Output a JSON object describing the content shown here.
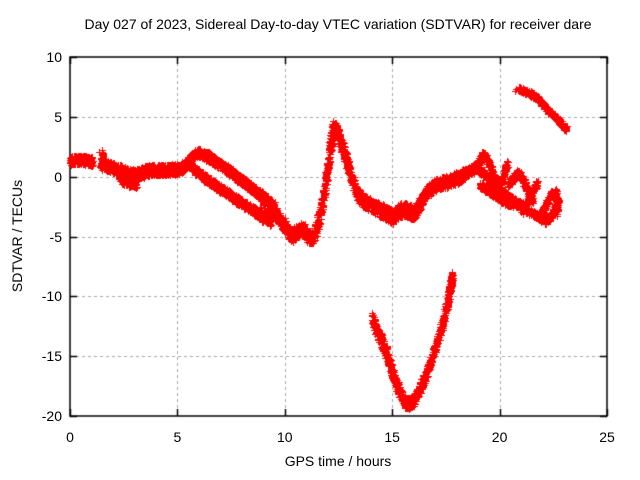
{
  "title": "Day 027 of 2023, Sidereal Day-to-day VTEC variation (SDTVAR) for receiver dare",
  "chart_data": {
    "type": "scatter",
    "marker": "plus",
    "color": "#ff0000",
    "grid_color": "#a8a8a8",
    "grid": true,
    "legend": "none",
    "xlabel": "GPS time / hours",
    "ylabel": "SDTVAR / TECUs",
    "xlim": [
      0,
      25
    ],
    "ylim": [
      -20,
      10
    ],
    "xticks": [
      0,
      5,
      10,
      15,
      20,
      25
    ],
    "yticks": [
      -20,
      -15,
      -10,
      -5,
      0,
      5,
      10
    ],
    "segments": [
      {
        "name": "start-cluster",
        "spread": 0.38,
        "n": 210,
        "pts": [
          [
            0,
            1.35
          ],
          [
            0.55,
            1.4
          ],
          [
            1.05,
            1.25
          ]
        ]
      },
      {
        "name": "spike-1.5",
        "spread": 0.12,
        "n": 45,
        "pts": [
          [
            1.5,
            0.7
          ],
          [
            1.52,
            2.2
          ]
        ]
      },
      {
        "name": "band-early",
        "spread": 0.45,
        "n": 850,
        "pts": [
          [
            1.42,
            1.1
          ],
          [
            2.0,
            0.75
          ],
          [
            2.5,
            0.45
          ],
          [
            3.0,
            0.12
          ],
          [
            3.3,
            0.3
          ],
          [
            3.6,
            0.5
          ],
          [
            4.0,
            0.55
          ],
          [
            4.5,
            0.55
          ],
          [
            5.0,
            0.65
          ],
          [
            5.3,
            0.8
          ]
        ]
      },
      {
        "name": "band-early-lower",
        "spread": 0.4,
        "n": 130,
        "pts": [
          [
            2.3,
            -0.1
          ],
          [
            2.7,
            -0.45
          ],
          [
            3.1,
            -0.55
          ]
        ]
      },
      {
        "name": "bump-6",
        "spread": 0.3,
        "n": 210,
        "pts": [
          [
            5.3,
            0.9
          ],
          [
            5.55,
            1.4
          ],
          [
            5.8,
            1.9
          ],
          [
            6.0,
            2.0
          ],
          [
            6.25,
            1.8
          ]
        ]
      },
      {
        "name": "decline-upper",
        "spread": 0.38,
        "n": 640,
        "pts": [
          [
            6.25,
            1.85
          ],
          [
            6.7,
            1.35
          ],
          [
            7.2,
            0.75
          ],
          [
            7.7,
            0.1
          ],
          [
            8.2,
            -0.6
          ],
          [
            8.7,
            -1.3
          ],
          [
            9.2,
            -2.0
          ],
          [
            9.5,
            -2.5
          ]
        ]
      },
      {
        "name": "decline-lower",
        "spread": 0.35,
        "n": 720,
        "pts": [
          [
            5.6,
            0.85
          ],
          [
            6.0,
            0.3
          ],
          [
            6.5,
            -0.4
          ],
          [
            7.0,
            -1.0
          ],
          [
            7.5,
            -1.6
          ],
          [
            8.0,
            -2.2
          ],
          [
            8.5,
            -2.8
          ],
          [
            9.0,
            -3.3
          ],
          [
            9.3,
            -3.6
          ]
        ]
      },
      {
        "name": "spiky-cluster-9",
        "spread": 1.2,
        "n": 60,
        "pts": [
          [
            8.8,
            -2.4
          ],
          [
            9.1,
            -2.8
          ],
          [
            9.4,
            -3.2
          ]
        ]
      },
      {
        "name": "valley-10",
        "spread": 0.55,
        "n": 420,
        "pts": [
          [
            9.5,
            -2.9
          ],
          [
            9.8,
            -3.6
          ],
          [
            10.1,
            -4.4
          ],
          [
            10.35,
            -5.0
          ],
          [
            10.6,
            -4.5
          ],
          [
            10.85,
            -4.4
          ],
          [
            11.1,
            -5.0
          ],
          [
            11.3,
            -5.1
          ]
        ]
      },
      {
        "name": "rise-12",
        "spread": 0.7,
        "n": 280,
        "pts": [
          [
            11.35,
            -4.9
          ],
          [
            11.55,
            -3.8
          ],
          [
            11.75,
            -2.2
          ],
          [
            11.9,
            -0.6
          ],
          [
            12.0,
            0.8
          ],
          [
            12.1,
            2.4
          ],
          [
            12.2,
            3.6
          ],
          [
            12.28,
            4.15
          ]
        ]
      },
      {
        "name": "peak-decline-13",
        "spread": 0.55,
        "n": 470,
        "pts": [
          [
            12.3,
            4.15
          ],
          [
            12.45,
            3.7
          ],
          [
            12.6,
            2.9
          ],
          [
            12.8,
            1.8
          ],
          [
            13.0,
            0.6
          ],
          [
            13.2,
            -0.7
          ],
          [
            13.45,
            -1.6
          ],
          [
            13.7,
            -2.1
          ],
          [
            14.0,
            -2.4
          ],
          [
            14.35,
            -2.7
          ]
        ]
      },
      {
        "name": "valley-15",
        "spread": 0.6,
        "n": 400,
        "pts": [
          [
            14.35,
            -2.7
          ],
          [
            14.6,
            -2.9
          ],
          [
            14.85,
            -3.2
          ],
          [
            15.05,
            -3.4
          ],
          [
            15.3,
            -2.9
          ],
          [
            15.6,
            -2.7
          ],
          [
            15.9,
            -3.0
          ],
          [
            16.15,
            -2.8
          ]
        ]
      },
      {
        "name": "rise-17",
        "spread": 0.5,
        "n": 470,
        "pts": [
          [
            16.15,
            -2.7
          ],
          [
            16.4,
            -1.9
          ],
          [
            16.7,
            -1.1
          ],
          [
            17.0,
            -0.7
          ],
          [
            17.4,
            -0.5
          ],
          [
            17.8,
            -0.3
          ],
          [
            18.1,
            -0.05
          ],
          [
            18.35,
            0.25
          ]
        ]
      },
      {
        "name": "plateau-tip-19",
        "spread": 0.35,
        "n": 220,
        "pts": [
          [
            18.35,
            0.3
          ],
          [
            18.6,
            0.5
          ],
          [
            18.9,
            0.8
          ],
          [
            19.1,
            1.3
          ],
          [
            19.25,
            1.85
          ]
        ]
      },
      {
        "name": "steep-descent-20",
        "spread": 0.3,
        "n": 180,
        "pts": [
          [
            19.3,
            1.9
          ],
          [
            19.55,
            0.9
          ],
          [
            19.8,
            -0.3
          ],
          [
            20.0,
            -1.2
          ],
          [
            20.15,
            -1.6
          ]
        ]
      },
      {
        "name": "long-descent-21",
        "spread": 0.3,
        "n": 370,
        "pts": [
          [
            18.8,
            0.9
          ],
          [
            19.3,
            0.2
          ],
          [
            19.8,
            -0.7
          ],
          [
            20.3,
            -1.6
          ],
          [
            20.8,
            -2.2
          ],
          [
            21.1,
            -2.5
          ]
        ]
      },
      {
        "name": "lower-strand-20",
        "spread": 0.3,
        "n": 240,
        "pts": [
          [
            19.1,
            -0.7
          ],
          [
            19.6,
            -1.3
          ],
          [
            20.1,
            -1.9
          ],
          [
            20.6,
            -2.3
          ]
        ]
      },
      {
        "name": "spur-up-20.3",
        "spread": 0.25,
        "n": 110,
        "pts": [
          [
            19.85,
            -1.2
          ],
          [
            20.05,
            -0.4
          ],
          [
            20.25,
            0.5
          ],
          [
            20.35,
            1.1
          ]
        ]
      },
      {
        "name": "spur-bump-21",
        "spread": 0.3,
        "n": 210,
        "pts": [
          [
            20.4,
            -0.6
          ],
          [
            20.65,
            -0.1
          ],
          [
            20.9,
            0.3
          ],
          [
            21.1,
            -0.3
          ],
          [
            21.3,
            -1.1
          ],
          [
            21.55,
            -2.0
          ]
        ]
      },
      {
        "name": "bottom-strand-22",
        "spread": 0.3,
        "n": 320,
        "pts": [
          [
            21.0,
            -2.6
          ],
          [
            21.5,
            -3.0
          ],
          [
            21.9,
            -3.4
          ],
          [
            22.15,
            -3.7
          ],
          [
            22.4,
            -3.3
          ],
          [
            22.6,
            -2.6
          ],
          [
            22.75,
            -1.9
          ]
        ]
      },
      {
        "name": "spur-up-21.5",
        "spread": 0.25,
        "n": 130,
        "pts": [
          [
            21.05,
            -2.9
          ],
          [
            21.35,
            -1.9
          ],
          [
            21.6,
            -1.0
          ],
          [
            21.75,
            -0.55
          ]
        ]
      },
      {
        "name": "spur-up-22.2",
        "spread": 0.25,
        "n": 90,
        "pts": [
          [
            21.95,
            -3.1
          ],
          [
            22.2,
            -2.2
          ],
          [
            22.4,
            -1.4
          ]
        ]
      },
      {
        "name": "edge-cluster-22.7",
        "spread": 0.3,
        "n": 70,
        "pts": [
          [
            22.6,
            -1.2
          ],
          [
            22.65,
            -2.0
          ],
          [
            22.7,
            -3.0
          ]
        ]
      },
      {
        "name": "top-streak",
        "spread": 0.22,
        "n": 340,
        "pts": [
          [
            20.9,
            7.35
          ],
          [
            21.2,
            7.1
          ],
          [
            21.5,
            6.85
          ],
          [
            21.8,
            6.5
          ],
          [
            22.05,
            6.0
          ],
          [
            22.35,
            5.4
          ],
          [
            22.65,
            4.85
          ],
          [
            22.9,
            4.35
          ],
          [
            23.1,
            3.95
          ]
        ]
      },
      {
        "name": "v-left-branch",
        "spread": 0.55,
        "n": 160,
        "pts": [
          [
            14.05,
            -11.8
          ],
          [
            14.3,
            -12.9
          ],
          [
            14.55,
            -13.9
          ],
          [
            14.8,
            -15.1
          ],
          [
            15.0,
            -16.2
          ]
        ]
      },
      {
        "name": "v-main",
        "spread": 0.45,
        "n": 640,
        "pts": [
          [
            15.0,
            -16.4
          ],
          [
            15.2,
            -17.3
          ],
          [
            15.4,
            -18.2
          ],
          [
            15.6,
            -18.85
          ],
          [
            15.78,
            -19.0
          ],
          [
            15.95,
            -18.8
          ],
          [
            16.15,
            -18.2
          ],
          [
            16.4,
            -17.3
          ],
          [
            16.65,
            -16.2
          ],
          [
            16.9,
            -14.9
          ],
          [
            17.15,
            -13.5
          ],
          [
            17.4,
            -11.9
          ],
          [
            17.6,
            -10.3
          ],
          [
            17.72,
            -9.0
          ],
          [
            17.8,
            -8.25
          ]
        ]
      }
    ],
    "isolated_points": [
      [
        1.37,
        2.1
      ],
      [
        20.78,
        7.3
      ],
      [
        20.72,
        7.2
      ]
    ]
  }
}
